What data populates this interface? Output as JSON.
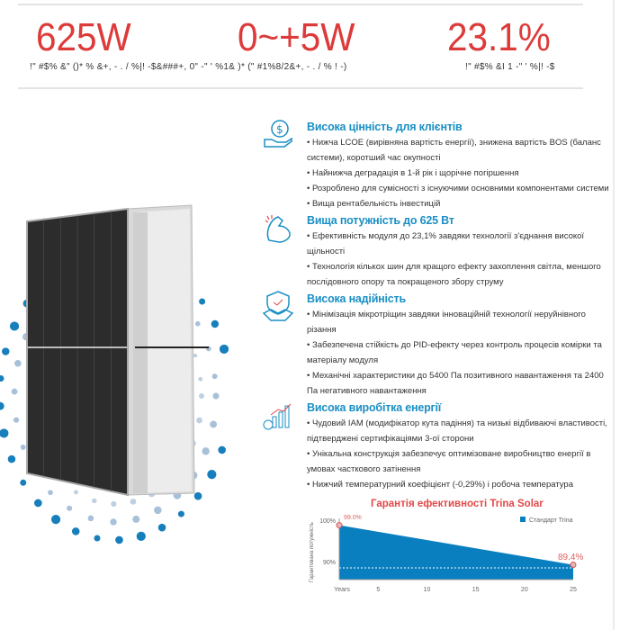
{
  "stats": [
    {
      "value": "625W",
      "caption": "!\"      #$% &\" ()* % &+, - . /  %|! -$&###+, 0\" -\" ' %1& )* (\" #1%8/2&+, - . /  % ! -)"
    },
    {
      "value": "0~+5W",
      "caption": ""
    },
    {
      "value": "23.1%",
      "caption": "!\"     #$% &I  1  -\" ' %|! -$"
    }
  ],
  "sections": [
    {
      "icon": "hand-dollar-icon",
      "title": "Висока цінність для клієнтів",
      "bullets": [
        "• Нижча LCOE (вирівняна вартість енергії), знижена вартість BOS (баланс системи), коротший час окупності",
        "• Найнижча деградація в 1-й рік і щорічне погіршення",
        "• Розроблено для сумісності з існуючими основними компонентами системи",
        "• Вища рентабельність інвестицій"
      ]
    },
    {
      "icon": "flexed-arm-icon",
      "title": "Вища потужність до 625 Вт",
      "bullets": [
        "• Ефективність модуля до 23,1% завдяки технології з'єднання високої щільності",
        "• Технологія кількох шин для кращого ефекту захоплення світла, меншого послідовного опору та покращеного збору струму"
      ]
    },
    {
      "icon": "shield-handshake-icon",
      "title": "Висока надійність",
      "bullets": [
        "• Мінімізація мікротріщин завдяки інноваційній технології неруйнівного різання",
        "• Забезпечена стійкість до PID-ефекту через контроль процесів комірки та матеріалу модуля",
        "• Механічні характеристики до 5400 Па позитивного навантаження та 2400 Па негативного навантаження"
      ]
    },
    {
      "icon": "bar-growth-icon",
      "title": "Висока виробітка енергії",
      "bullets": [
        "• Чудовий IAM (модифікатор кута падіння) та низькі відбиваючі властивості, підтверджені сертифікаціями 3-ої сторони",
        "• Унікальна конструкція забезпечує оптимізоване виробництво енергії в умовах часткового затінення",
        "• Нижчий температурний коефіцієнт (-0,29%) і робоча температура"
      ]
    }
  ],
  "colors": {
    "accent_red": "#dd3a3a",
    "accent_blue": "#1a8fc4",
    "chart_fill": "#0a7fc0"
  },
  "chart_data": {
    "type": "area",
    "title": "Гарантія ефективності Trina Solar",
    "ylabel": "Гарантована потужність",
    "xlabel": "",
    "x_tick_labels": [
      "Years",
      "5",
      "10",
      "15",
      "20",
      "25"
    ],
    "y_tick_labels": [
      "100%",
      "90%"
    ],
    "series": [
      {
        "name": "Стандарт Trina",
        "x": [
          1,
          25
        ],
        "y": [
          99.0,
          89.4
        ]
      }
    ],
    "annotations": [
      "99.0%",
      "89.4%"
    ],
    "legend": "top-right"
  }
}
